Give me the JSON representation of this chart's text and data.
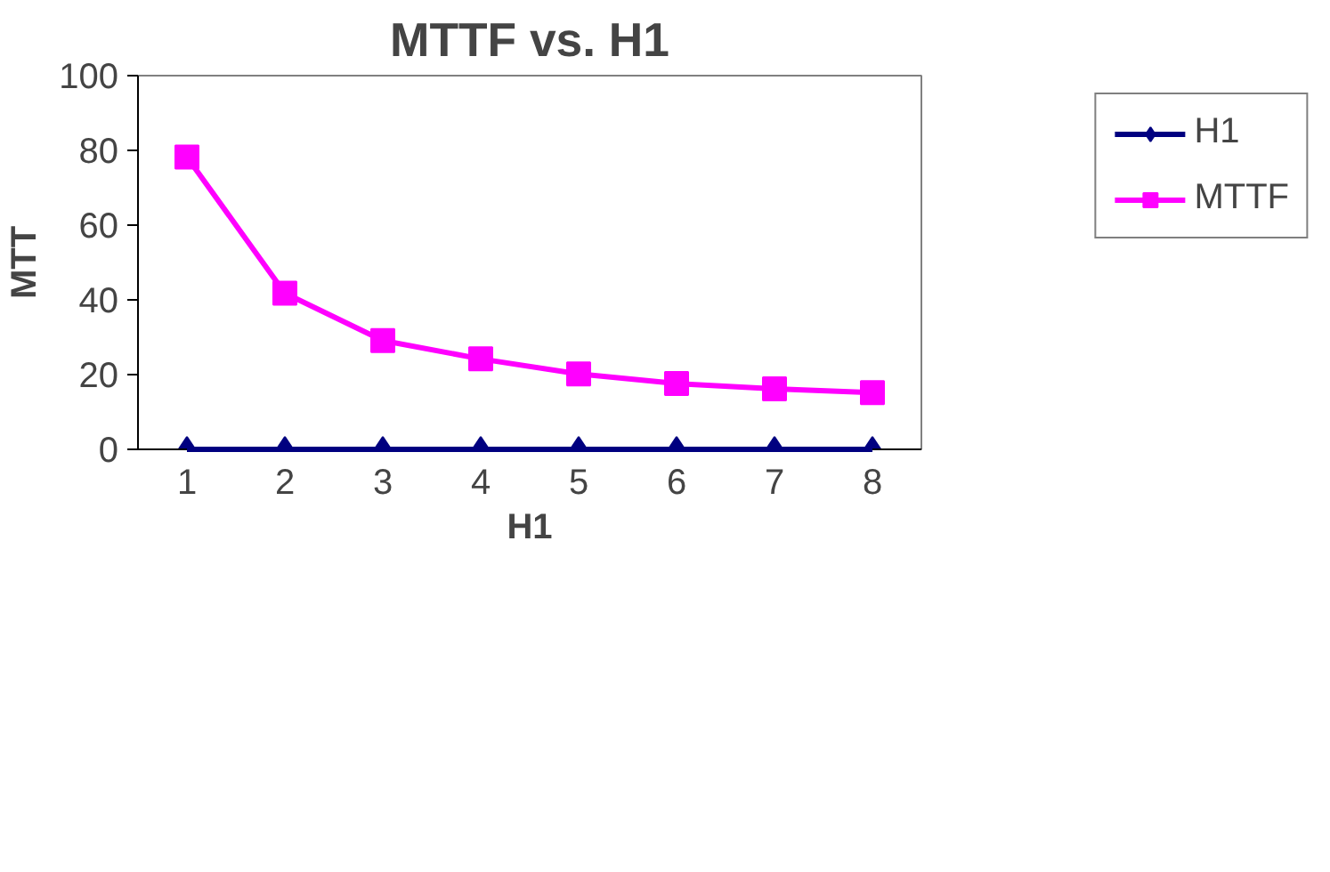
{
  "chart_data": {
    "type": "line",
    "title": "MTTF vs. H1",
    "xlabel": "H1",
    "ylabel": "MTT",
    "categories": [
      "1",
      "2",
      "3",
      "4",
      "5",
      "6",
      "7",
      "8"
    ],
    "series": [
      {
        "name": "H1",
        "color": "#000080",
        "marker": "diamond",
        "values": [
          0,
          0,
          0,
          0,
          0,
          0,
          0,
          0
        ]
      },
      {
        "name": "MTTF",
        "color": "#ff00ff",
        "marker": "square",
        "values": [
          78.2,
          41.8,
          29.1,
          24.2,
          20.2,
          17.6,
          16.2,
          15.2
        ]
      }
    ],
    "ylim": [
      0,
      100
    ],
    "yticks": [
      0,
      20,
      40,
      60,
      80,
      100
    ],
    "grid": false,
    "legend": "right",
    "line_style": "solid"
  }
}
